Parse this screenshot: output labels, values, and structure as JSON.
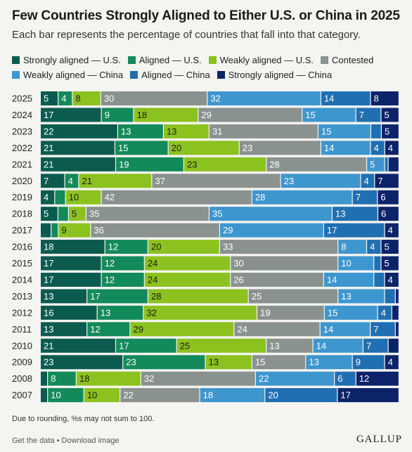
{
  "header": {
    "title": "Few Countries Strongly Aligned to Either U.S. or China in 2025",
    "subtitle": "Each bar represents the percentage of countries that fall into that category."
  },
  "legend": {
    "row1": [
      {
        "label": "Strongly aligned — U.S.",
        "color": "#0b5b4f"
      },
      {
        "label": "Aligned — U.S.",
        "color": "#138a5a"
      },
      {
        "label": "Weakly aligned — U.S.",
        "color": "#8cc21f"
      },
      {
        "label": "Contested",
        "color": "#8a928f"
      }
    ],
    "row2": [
      {
        "label": "Weakly aligned — China",
        "color": "#3e96cf"
      },
      {
        "label": "Aligned — China",
        "color": "#1f6fb2"
      },
      {
        "label": "Strongly aligned — China",
        "color": "#0c236a"
      }
    ]
  },
  "chart_data": {
    "type": "bar",
    "orientation": "horizontal",
    "stacked": true,
    "categories": [
      "2025",
      "2024",
      "2023",
      "2022",
      "2021",
      "2020",
      "2019",
      "2018",
      "2017",
      "2016",
      "2015",
      "2014",
      "2013",
      "2012",
      "2011",
      "2010",
      "2009",
      "2008",
      "2007"
    ],
    "series": [
      {
        "name": "Strongly aligned — U.S.",
        "color": "#0b5b4f",
        "values": [
          5,
          17,
          22,
          21,
          21,
          7,
          4,
          5,
          3,
          18,
          17,
          17,
          13,
          16,
          13,
          21,
          23,
          2,
          2
        ]
      },
      {
        "name": "Aligned — U.S.",
        "color": "#138a5a",
        "values": [
          4,
          9,
          13,
          15,
          19,
          4,
          3,
          3,
          2,
          12,
          12,
          12,
          17,
          13,
          12,
          17,
          23,
          8,
          10
        ]
      },
      {
        "name": "Weakly aligned — U.S.",
        "color": "#8cc21f",
        "values": [
          8,
          18,
          13,
          20,
          23,
          21,
          10,
          5,
          9,
          20,
          24,
          24,
          28,
          32,
          29,
          25,
          13,
          18,
          10
        ]
      },
      {
        "name": "Contested",
        "color": "#8a928f",
        "values": [
          30,
          29,
          31,
          23,
          28,
          37,
          42,
          35,
          36,
          33,
          30,
          26,
          25,
          19,
          24,
          13,
          15,
          32,
          22
        ]
      },
      {
        "name": "Weakly aligned — China",
        "color": "#3e96cf",
        "values": [
          32,
          15,
          15,
          14,
          5,
          23,
          28,
          35,
          29,
          8,
          10,
          14,
          13,
          15,
          14,
          14,
          13,
          22,
          18
        ]
      },
      {
        "name": "Aligned — China",
        "color": "#1f6fb2",
        "values": [
          14,
          7,
          3,
          4,
          1,
          4,
          7,
          13,
          17,
          4,
          2,
          3,
          3,
          4,
          7,
          7,
          9,
          6,
          20
        ]
      },
      {
        "name": "Strongly aligned — China",
        "color": "#0c236a",
        "values": [
          8,
          5,
          5,
          4,
          3,
          7,
          6,
          6,
          4,
          5,
          5,
          4,
          1,
          2,
          1,
          3,
          4,
          12,
          17
        ]
      }
    ],
    "label_min": 4,
    "xlim": [
      0,
      100
    ],
    "grid": false
  },
  "footer": {
    "note": "Due to rounding, %s may not sum to 100.",
    "get_data": "Get the data",
    "separator": " • ",
    "download": "Download image",
    "brand": "GALLUP"
  }
}
